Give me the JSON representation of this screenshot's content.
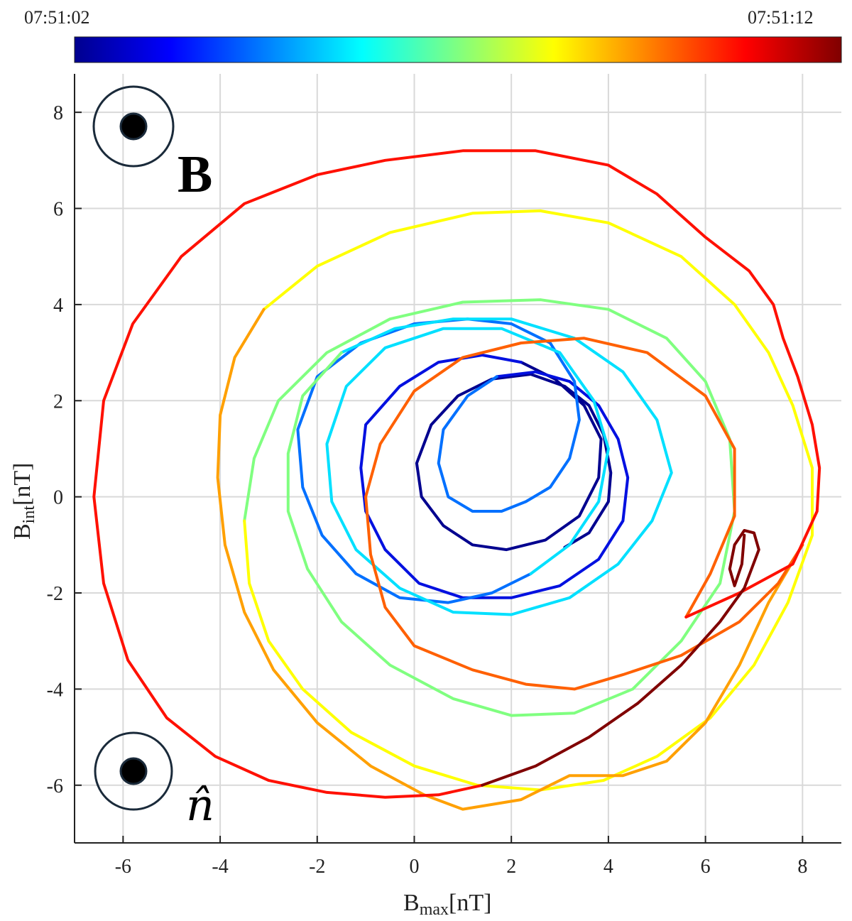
{
  "chart_data": {
    "type": "line",
    "xlabel": {
      "main": "B",
      "sub": "max",
      "unit": "[nT]"
    },
    "ylabel": {
      "main": "B",
      "sub": "int",
      "unit": "[nT]"
    },
    "xlim": [
      -7,
      8.8
    ],
    "ylim": [
      -7.2,
      8.8
    ],
    "xticks": [
      -6,
      -4,
      -2,
      0,
      2,
      4,
      6,
      8
    ],
    "yticks": [
      -6,
      -4,
      -2,
      0,
      2,
      4,
      6,
      8
    ],
    "xtick_labels": [
      "-6",
      "-4",
      "-2",
      "0",
      "2",
      "4",
      "6",
      "8"
    ],
    "ytick_labels": [
      "-6",
      "-4",
      "-2",
      "0",
      "2",
      "4",
      "6",
      "8"
    ],
    "grid": true,
    "colorbar": {
      "colormap": "jet",
      "label_start": "07:51:02",
      "label_end": "07:51:12",
      "colors": [
        "#00008f",
        "#0000ff",
        "#0080ff",
        "#00ffff",
        "#80ff80",
        "#ffff00",
        "#ff8000",
        "#ff0000",
        "#800000"
      ]
    },
    "annotations": {
      "top_symbol": "B",
      "bottom_symbol": "n̂",
      "top_marker": {
        "type": "circle-dot",
        "x": -5.8,
        "y": 7.85
      },
      "bottom_marker": {
        "type": "circle-dot",
        "x": -5.8,
        "y": -5.6
      }
    },
    "series": [
      {
        "color": "#00008f",
        "points": [
          [
            3.1,
            -1.05
          ],
          [
            3.6,
            -0.75
          ],
          [
            4.0,
            -0.1
          ],
          [
            4.05,
            0.5
          ],
          [
            3.9,
            1.3
          ],
          [
            3.6,
            1.9
          ],
          [
            3.1,
            2.3
          ],
          [
            2.4,
            2.55
          ],
          [
            1.6,
            2.45
          ],
          [
            0.9,
            2.1
          ],
          [
            0.35,
            1.5
          ],
          [
            0.05,
            0.7
          ],
          [
            0.15,
            0.0
          ],
          [
            0.6,
            -0.6
          ],
          [
            1.2,
            -1.0
          ],
          [
            1.9,
            -1.1
          ],
          [
            2.7,
            -0.9
          ],
          [
            3.4,
            -0.4
          ],
          [
            3.8,
            0.4
          ],
          [
            3.85,
            1.2
          ],
          [
            3.5,
            1.9
          ],
          [
            2.9,
            2.45
          ],
          [
            2.2,
            2.8
          ]
        ]
      },
      {
        "color": "#0010e0",
        "points": [
          [
            2.2,
            2.8
          ],
          [
            1.4,
            2.95
          ],
          [
            0.5,
            2.8
          ],
          [
            -0.3,
            2.3
          ],
          [
            -1.0,
            1.5
          ],
          [
            -1.1,
            0.6
          ],
          [
            -1.0,
            -0.3
          ],
          [
            -0.6,
            -1.1
          ],
          [
            0.1,
            -1.8
          ],
          [
            1.0,
            -2.1
          ],
          [
            2.0,
            -2.1
          ],
          [
            3.0,
            -1.85
          ],
          [
            3.8,
            -1.3
          ],
          [
            4.3,
            -0.5
          ],
          [
            4.4,
            0.4
          ],
          [
            4.2,
            1.2
          ],
          [
            3.8,
            1.9
          ],
          [
            3.2,
            2.4
          ],
          [
            2.5,
            2.6
          ],
          [
            1.7,
            2.5
          ]
        ]
      },
      {
        "color": "#0070ff",
        "points": [
          [
            1.7,
            2.5
          ],
          [
            1.1,
            2.1
          ],
          [
            0.6,
            1.4
          ],
          [
            0.5,
            0.7
          ],
          [
            0.7,
            0.0
          ],
          [
            1.2,
            -0.3
          ],
          [
            1.8,
            -0.3
          ],
          [
            2.3,
            -0.1
          ],
          [
            2.8,
            0.2
          ],
          [
            3.2,
            0.8
          ],
          [
            3.4,
            1.6
          ],
          [
            3.3,
            2.4
          ],
          [
            2.8,
            3.2
          ],
          [
            2.0,
            3.6
          ],
          [
            1.1,
            3.7
          ],
          [
            0.0,
            3.6
          ],
          [
            -1.1,
            3.2
          ],
          [
            -2.0,
            2.5
          ],
          [
            -2.4,
            1.4
          ],
          [
            -2.3,
            0.2
          ],
          [
            -1.9,
            -0.8
          ],
          [
            -1.2,
            -1.6
          ],
          [
            -0.3,
            -2.1
          ],
          [
            0.7,
            -2.2
          ],
          [
            1.6,
            -2.0
          ],
          [
            2.4,
            -1.6
          ]
        ]
      },
      {
        "color": "#00e0ff",
        "points": [
          [
            2.4,
            -1.6
          ],
          [
            3.2,
            -1.0
          ],
          [
            3.8,
            -0.1
          ],
          [
            4.0,
            1.0
          ],
          [
            3.7,
            2.0
          ],
          [
            3.0,
            3.0
          ],
          [
            1.8,
            3.5
          ],
          [
            0.6,
            3.5
          ],
          [
            -0.6,
            3.1
          ],
          [
            -1.4,
            2.3
          ],
          [
            -1.8,
            1.1
          ],
          [
            -1.7,
            -0.1
          ],
          [
            -1.2,
            -1.1
          ],
          [
            -0.3,
            -1.9
          ],
          [
            0.8,
            -2.4
          ],
          [
            2.0,
            -2.45
          ],
          [
            3.2,
            -2.1
          ],
          [
            4.2,
            -1.4
          ],
          [
            4.9,
            -0.5
          ],
          [
            5.3,
            0.5
          ],
          [
            5.0,
            1.6
          ],
          [
            4.3,
            2.6
          ],
          [
            3.3,
            3.3
          ],
          [
            2.0,
            3.7
          ],
          [
            0.8,
            3.7
          ],
          [
            -0.4,
            3.5
          ],
          [
            -1.5,
            3.0
          ]
        ]
      },
      {
        "color": "#80ff80",
        "points": [
          [
            -1.5,
            3.0
          ],
          [
            -2.3,
            2.1
          ],
          [
            -2.6,
            0.9
          ],
          [
            -2.6,
            -0.3
          ],
          [
            -2.2,
            -1.5
          ],
          [
            -1.5,
            -2.6
          ],
          [
            -0.5,
            -3.5
          ],
          [
            0.8,
            -4.2
          ],
          [
            2.0,
            -4.55
          ],
          [
            3.3,
            -4.5
          ],
          [
            4.5,
            -4.0
          ],
          [
            5.5,
            -3.0
          ],
          [
            6.3,
            -1.8
          ],
          [
            6.6,
            -0.3
          ],
          [
            6.5,
            1.2
          ],
          [
            6.0,
            2.4
          ],
          [
            5.2,
            3.3
          ],
          [
            4.0,
            3.9
          ],
          [
            2.6,
            4.1
          ],
          [
            1.0,
            4.05
          ],
          [
            -0.5,
            3.7
          ],
          [
            -1.8,
            3.0
          ],
          [
            -2.8,
            2.0
          ],
          [
            -3.3,
            0.8
          ],
          [
            -3.5,
            -0.5
          ]
        ]
      },
      {
        "color": "#ffff00",
        "points": [
          [
            -3.5,
            -0.5
          ],
          [
            -3.4,
            -1.8
          ],
          [
            -3.0,
            -3.0
          ],
          [
            -2.3,
            -4.0
          ],
          [
            -1.3,
            -4.9
          ],
          [
            0.0,
            -5.6
          ],
          [
            1.3,
            -6.0
          ],
          [
            2.6,
            -6.1
          ],
          [
            3.9,
            -5.9
          ],
          [
            5.0,
            -5.4
          ],
          [
            6.1,
            -4.6
          ],
          [
            7.0,
            -3.5
          ],
          [
            7.7,
            -2.2
          ],
          [
            8.2,
            -0.8
          ],
          [
            8.2,
            0.6
          ],
          [
            7.8,
            1.9
          ],
          [
            7.3,
            3.0
          ],
          [
            6.6,
            4.0
          ],
          [
            5.5,
            5.0
          ],
          [
            4.0,
            5.7
          ],
          [
            2.6,
            5.95
          ],
          [
            1.2,
            5.9
          ],
          [
            -0.5,
            5.5
          ],
          [
            -2.0,
            4.8
          ],
          [
            -3.1,
            3.9
          ]
        ]
      },
      {
        "color": "#ffa000",
        "points": [
          [
            -3.1,
            3.9
          ],
          [
            -3.7,
            2.9
          ],
          [
            -4.0,
            1.7
          ],
          [
            -4.05,
            0.4
          ],
          [
            -3.9,
            -1.0
          ],
          [
            -3.5,
            -2.4
          ],
          [
            -2.9,
            -3.6
          ],
          [
            -2.0,
            -4.7
          ],
          [
            -0.9,
            -5.6
          ],
          [
            0.2,
            -6.2
          ],
          [
            1.0,
            -6.5
          ],
          [
            2.2,
            -6.3
          ],
          [
            3.2,
            -5.8
          ],
          [
            4.3,
            -5.8
          ],
          [
            5.2,
            -5.5
          ],
          [
            6.0,
            -4.7
          ],
          [
            6.7,
            -3.5
          ],
          [
            7.3,
            -2.2
          ],
          [
            8.0,
            -1.0
          ]
        ]
      },
      {
        "color": "#ff6000",
        "points": [
          [
            8.0,
            -1.0
          ],
          [
            7.5,
            -1.8
          ],
          [
            6.7,
            -2.6
          ],
          [
            5.5,
            -3.3
          ],
          [
            4.3,
            -3.7
          ],
          [
            3.3,
            -4.0
          ],
          [
            2.3,
            -3.9
          ],
          [
            1.2,
            -3.6
          ],
          [
            0.0,
            -3.1
          ],
          [
            -0.6,
            -2.3
          ],
          [
            -0.9,
            -1.2
          ],
          [
            -1.0,
            0.0
          ],
          [
            -0.7,
            1.1
          ],
          [
            0.0,
            2.2
          ],
          [
            1.0,
            2.9
          ],
          [
            2.2,
            3.2
          ],
          [
            3.5,
            3.3
          ],
          [
            4.8,
            3.0
          ],
          [
            6.0,
            2.1
          ],
          [
            6.6,
            1.0
          ],
          [
            6.6,
            -0.4
          ],
          [
            6.1,
            -1.6
          ],
          [
            5.6,
            -2.5
          ]
        ]
      },
      {
        "color": "#ff1000",
        "points": [
          [
            5.6,
            -2.5
          ],
          [
            6.7,
            -2.0
          ],
          [
            7.8,
            -1.4
          ],
          [
            8.3,
            -0.3
          ],
          [
            8.35,
            0.6
          ],
          [
            8.2,
            1.5
          ],
          [
            7.9,
            2.5
          ],
          [
            7.6,
            3.3
          ],
          [
            7.4,
            4.0
          ],
          [
            6.9,
            4.7
          ],
          [
            6.0,
            5.4
          ],
          [
            5.0,
            6.3
          ],
          [
            4.0,
            6.9
          ],
          [
            2.5,
            7.2
          ],
          [
            1.0,
            7.2
          ],
          [
            -0.6,
            7.0
          ],
          [
            -2.0,
            6.7
          ],
          [
            -3.5,
            6.1
          ],
          [
            -4.8,
            5.0
          ],
          [
            -5.8,
            3.6
          ],
          [
            -6.4,
            2.0
          ],
          [
            -6.6,
            0.0
          ],
          [
            -6.4,
            -1.8
          ],
          [
            -5.9,
            -3.4
          ],
          [
            -5.1,
            -4.6
          ],
          [
            -4.1,
            -5.4
          ],
          [
            -3.0,
            -5.9
          ],
          [
            -1.8,
            -6.15
          ],
          [
            -0.6,
            -6.25
          ],
          [
            0.5,
            -6.2
          ],
          [
            1.4,
            -6.0
          ]
        ]
      },
      {
        "color": "#800000",
        "points": [
          [
            1.4,
            -6.0
          ],
          [
            2.5,
            -5.6
          ],
          [
            3.6,
            -5.0
          ],
          [
            4.6,
            -4.3
          ],
          [
            5.5,
            -3.5
          ],
          [
            6.3,
            -2.6
          ],
          [
            6.8,
            -1.9
          ],
          [
            7.1,
            -1.1
          ],
          [
            7.0,
            -0.75
          ],
          [
            6.8,
            -0.7
          ],
          [
            6.6,
            -1.0
          ],
          [
            6.5,
            -1.5
          ],
          [
            6.6,
            -1.85
          ],
          [
            6.75,
            -1.4
          ],
          [
            6.8,
            -0.8
          ]
        ]
      }
    ]
  }
}
